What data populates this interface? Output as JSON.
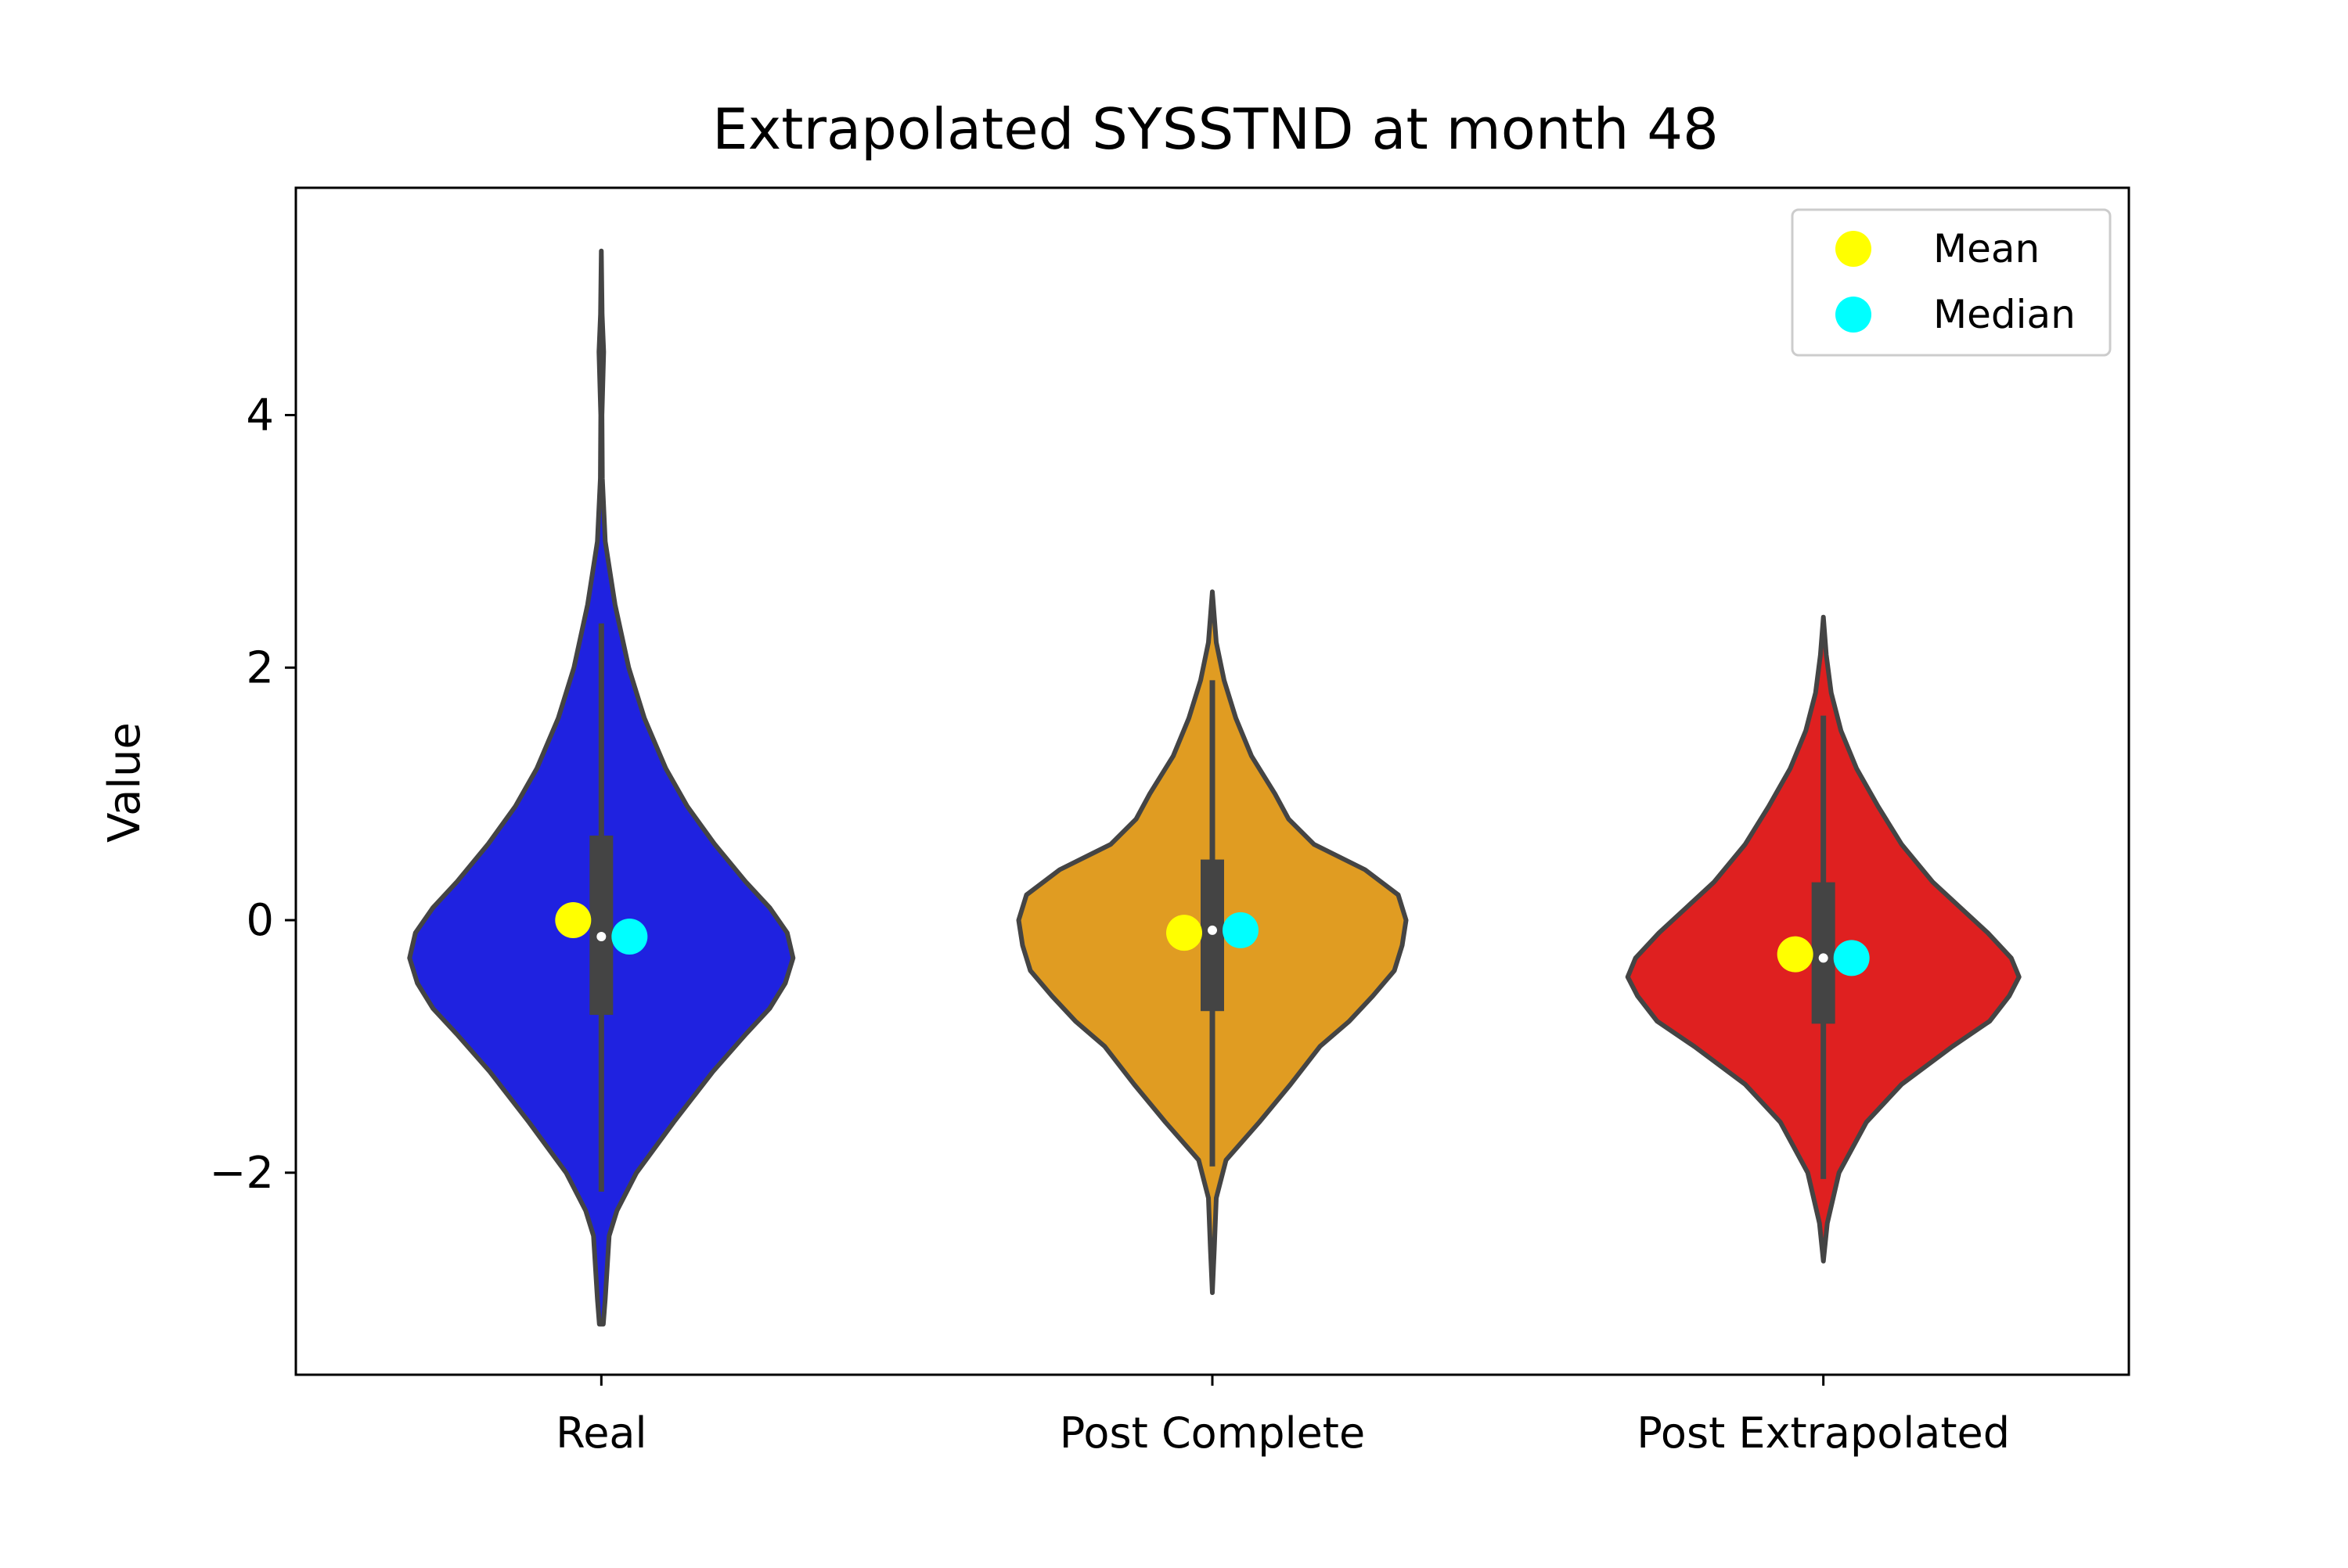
{
  "chart_data": {
    "type": "violin",
    "title": "Extrapolated SYSSTND at month 48",
    "xlabel": "",
    "ylabel": "Value",
    "ylim": [
      -3.6,
      5.8
    ],
    "yticks": [
      -2,
      0,
      2,
      4
    ],
    "ytick_labels": [
      "−2",
      "0",
      "2",
      "4"
    ],
    "categories": [
      "Real",
      "Post Complete",
      "Post Extrapolated"
    ],
    "grid": false,
    "legend": {
      "placement": "top-right",
      "entries": [
        {
          "label": "Mean",
          "color": "#ffff00"
        },
        {
          "label": "Median",
          "color": "#00ffff"
        }
      ]
    },
    "series": [
      {
        "category": "Real",
        "color": "#1f22e0",
        "min": -3.2,
        "max": 5.3,
        "q1": -0.75,
        "q3": 0.67,
        "whisker_low": -2.15,
        "whisker_high": 2.35,
        "median": -0.13,
        "mean": 0.0,
        "density_profile": [
          [
            -3.2,
            0.01
          ],
          [
            -3.0,
            0.02
          ],
          [
            -2.5,
            0.04
          ],
          [
            -2.3,
            0.08
          ],
          [
            -2.0,
            0.18
          ],
          [
            -1.6,
            0.37
          ],
          [
            -1.2,
            0.57
          ],
          [
            -0.9,
            0.74
          ],
          [
            -0.7,
            0.86
          ],
          [
            -0.5,
            0.94
          ],
          [
            -0.3,
            0.98
          ],
          [
            -0.1,
            0.95
          ],
          [
            0.1,
            0.86
          ],
          [
            0.3,
            0.74
          ],
          [
            0.6,
            0.58
          ],
          [
            0.9,
            0.44
          ],
          [
            1.2,
            0.33
          ],
          [
            1.6,
            0.22
          ],
          [
            2.0,
            0.14
          ],
          [
            2.5,
            0.07
          ],
          [
            3.0,
            0.02
          ],
          [
            3.5,
            0.005
          ],
          [
            4.0,
            0.003
          ],
          [
            4.5,
            0.012
          ],
          [
            4.8,
            0.004
          ],
          [
            5.3,
            0.0
          ]
        ]
      },
      {
        "category": "Post Complete",
        "color": "#e09c22",
        "min": -2.95,
        "max": 2.6,
        "q1": -0.72,
        "q3": 0.48,
        "whisker_low": -1.95,
        "whisker_high": 1.9,
        "median": -0.08,
        "mean": -0.1,
        "density_profile": [
          [
            -2.95,
            0.0
          ],
          [
            -2.6,
            0.01
          ],
          [
            -2.2,
            0.02
          ],
          [
            -1.9,
            0.07
          ],
          [
            -1.6,
            0.24
          ],
          [
            -1.3,
            0.4
          ],
          [
            -1.0,
            0.55
          ],
          [
            -0.8,
            0.7
          ],
          [
            -0.6,
            0.82
          ],
          [
            -0.4,
            0.93
          ],
          [
            -0.2,
            0.97
          ],
          [
            0.0,
            0.99
          ],
          [
            0.2,
            0.95
          ],
          [
            0.4,
            0.78
          ],
          [
            0.6,
            0.52
          ],
          [
            0.8,
            0.39
          ],
          [
            1.0,
            0.32
          ],
          [
            1.3,
            0.2
          ],
          [
            1.6,
            0.12
          ],
          [
            1.9,
            0.06
          ],
          [
            2.2,
            0.02
          ],
          [
            2.6,
            0.0
          ]
        ]
      },
      {
        "category": "Post Extrapolated",
        "color": "#df2020",
        "min": -2.7,
        "max": 2.4,
        "q1": -0.82,
        "q3": 0.3,
        "whisker_low": -2.05,
        "whisker_high": 1.62,
        "median": -0.3,
        "mean": -0.27,
        "density_profile": [
          [
            -2.7,
            0.0
          ],
          [
            -2.4,
            0.02
          ],
          [
            -2.0,
            0.08
          ],
          [
            -1.6,
            0.22
          ],
          [
            -1.3,
            0.4
          ],
          [
            -1.0,
            0.66
          ],
          [
            -0.8,
            0.85
          ],
          [
            -0.6,
            0.95
          ],
          [
            -0.45,
            1.0
          ],
          [
            -0.3,
            0.96
          ],
          [
            -0.1,
            0.84
          ],
          [
            0.1,
            0.7
          ],
          [
            0.3,
            0.56
          ],
          [
            0.6,
            0.4
          ],
          [
            0.9,
            0.28
          ],
          [
            1.2,
            0.17
          ],
          [
            1.5,
            0.09
          ],
          [
            1.8,
            0.04
          ],
          [
            2.1,
            0.015
          ],
          [
            2.4,
            0.0
          ]
        ]
      }
    ]
  }
}
